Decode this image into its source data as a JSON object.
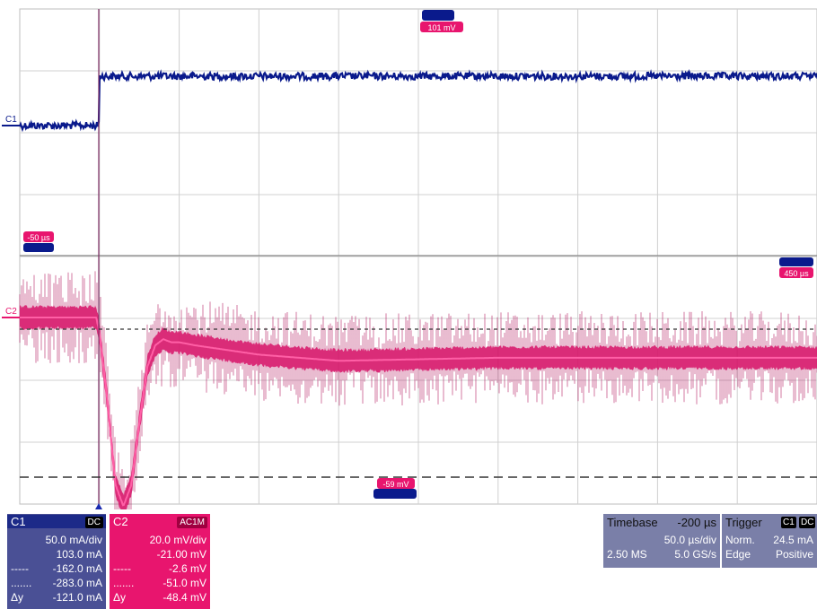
{
  "colors": {
    "c1": "#0a1a8c",
    "c2": "#e8156e",
    "c1_panel": "#4a5095",
    "c2_panel": "#e8156e",
    "grid": "#c8c8c8"
  },
  "markers": {
    "c1_label": "C1",
    "c2_label": "C2",
    "cursor_top_label": "101 mV",
    "cursor_left_label": "-50 µs",
    "cursor_right_label": "450 µs",
    "cursor_bottom_label": "-59 mV"
  },
  "c1_panel": {
    "title": "C1",
    "coupling": "DC",
    "scale": "50.0 mA/div",
    "offset": "103.0 mA",
    "rows": [
      {
        "label": "-----",
        "value": "-162.0 mA"
      },
      {
        "label": ".......",
        "value": "-283.0 mA"
      },
      {
        "label": "Δy",
        "value": "-121.0 mA"
      }
    ]
  },
  "c2_panel": {
    "title": "C2",
    "coupling": "AC1M",
    "scale": "20.0 mV/div",
    "offset": "-21.00 mV",
    "rows": [
      {
        "label": "-----",
        "value": "-2.6 mV"
      },
      {
        "label": ".......",
        "value": "-51.0 mV"
      },
      {
        "label": "Δy",
        "value": "-48.4 mV"
      }
    ]
  },
  "timebase": {
    "label": "Timebase",
    "delay": "-200 µs",
    "scale": "50.0 µs/div",
    "samples": "2.50 MS",
    "rate": "5.0 GS/s"
  },
  "trigger": {
    "label": "Trigger",
    "channel": "C1",
    "coupling": "DC",
    "mode": "Norm.",
    "level": "24.5 mA",
    "type": "Edge",
    "slope": "Positive"
  },
  "chart_data": {
    "type": "line",
    "title": "",
    "xlabel": "",
    "ylabel": "",
    "x_units": "µs",
    "xlim": [
      -100,
      400
    ],
    "divisions": {
      "x": 10,
      "y": 8
    },
    "grid": true,
    "trigger_time": -50,
    "series": [
      {
        "name": "C1",
        "x": [
          -100,
          -50.5,
          -50,
          -48,
          400
        ],
        "values": [
          -240,
          -240,
          -20,
          -20,
          -20
        ]
      },
      {
        "name": "C2",
        "x": [
          -100,
          -52,
          -50,
          -45,
          -40,
          -35,
          -30,
          -25,
          -20,
          -15,
          -10,
          -5,
          0,
          10,
          50,
          100,
          200,
          300,
          400
        ],
        "values": [
          -21,
          -21,
          -26,
          -48,
          -75,
          -82,
          -75,
          -55,
          -37,
          -30,
          -28,
          -29,
          -29,
          -30,
          -33,
          -35,
          -34,
          -34,
          -34
        ]
      }
    ],
    "cursors": {
      "c1_levels": [
        -162.0,
        -283.0
      ],
      "c2_levels": [
        -2.6,
        -51.0
      ]
    }
  }
}
